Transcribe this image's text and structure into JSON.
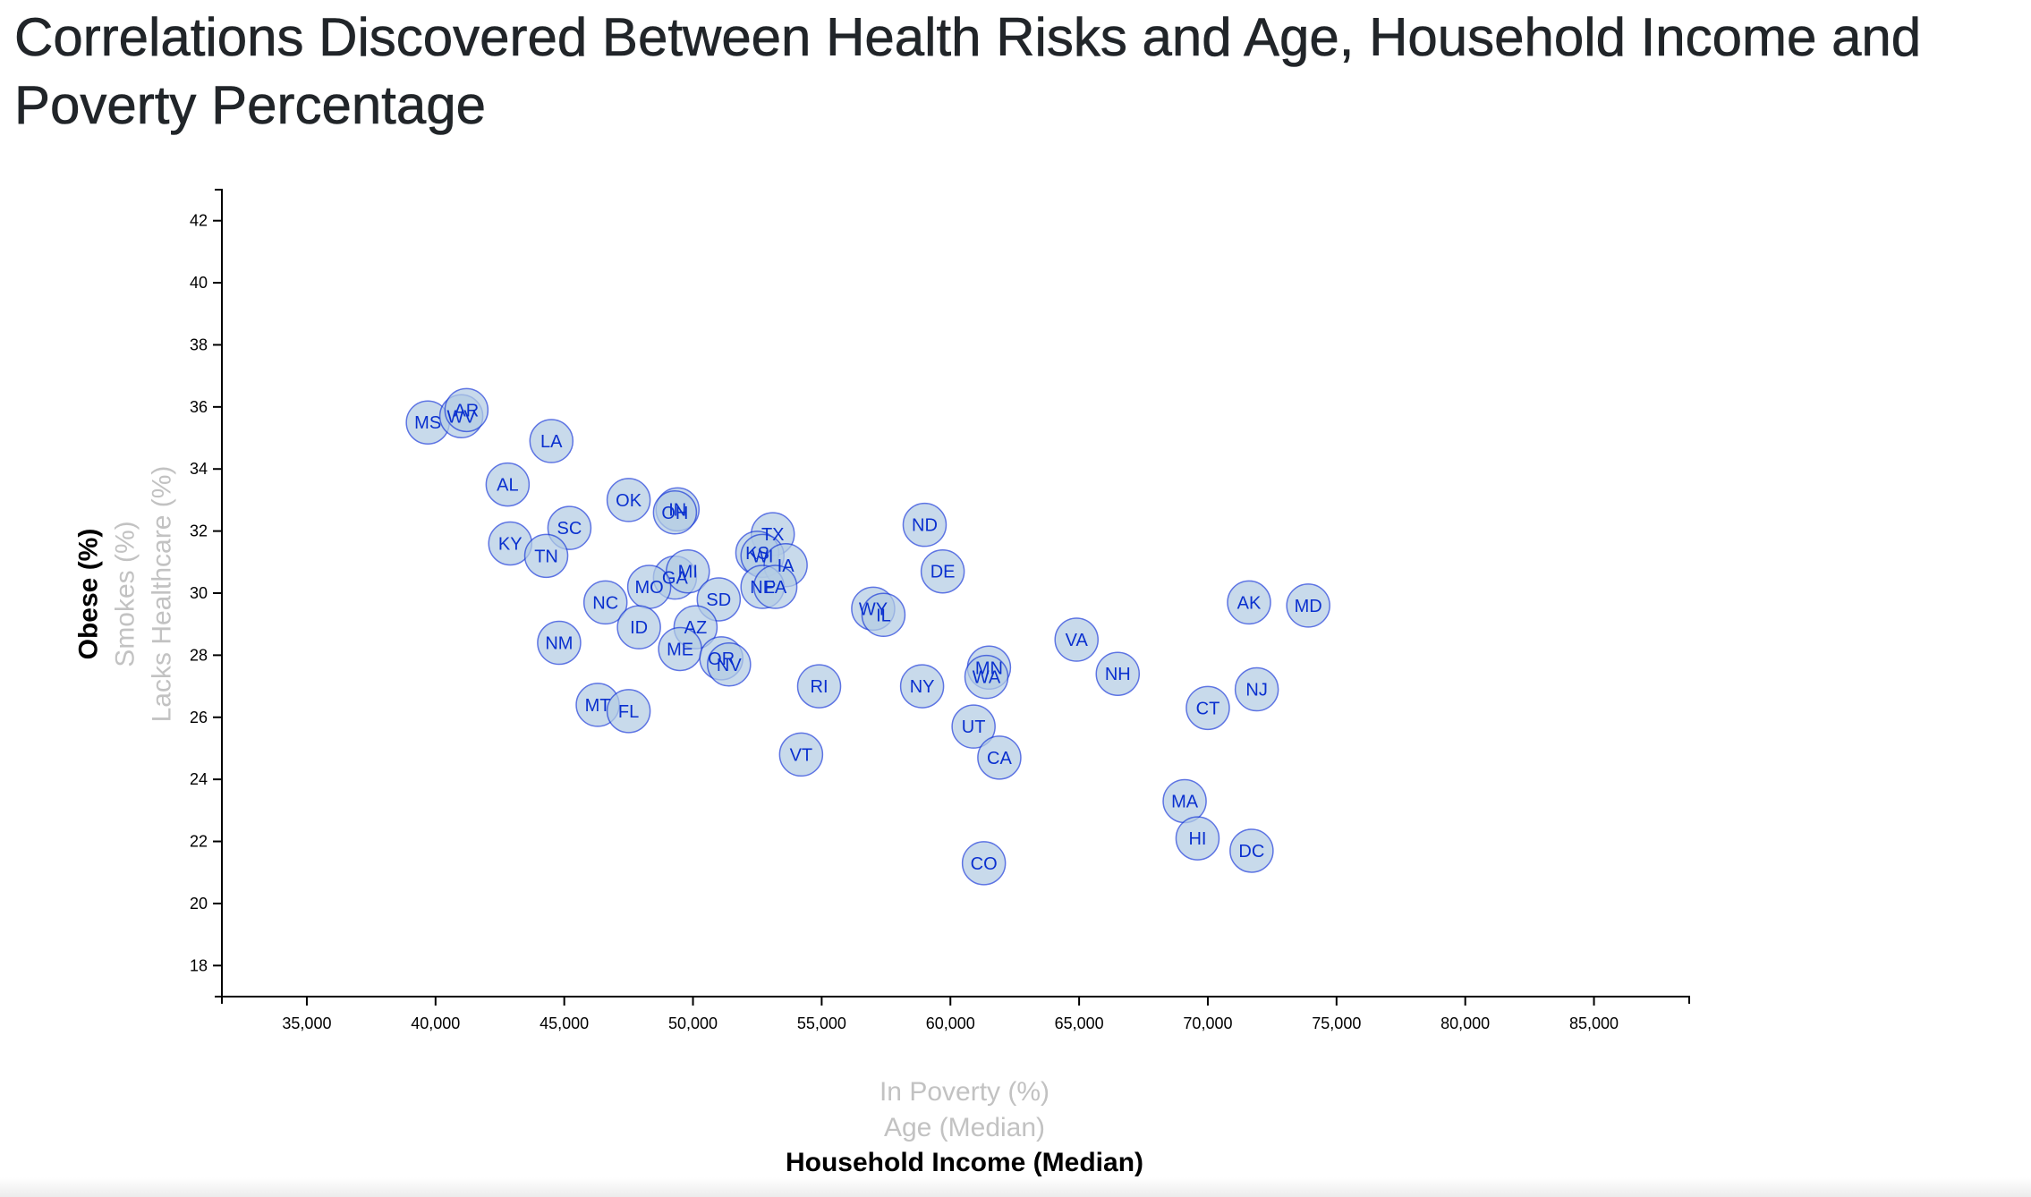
{
  "title": "Correlations Discovered Between Health Risks and Age, Household Income and Poverty Percentage",
  "chart_data": {
    "type": "scatter",
    "x_label_options": [
      "In Poverty (%)",
      "Age (Median)",
      "Household Income (Median)"
    ],
    "y_label_options": [
      "Obese (%)",
      "Smokes (%)",
      "Lacks Healthcare (%)"
    ],
    "active_x": "Household Income (Median)",
    "active_y": "Obese (%)",
    "xlim": [
      31700,
      88700
    ],
    "ylim": [
      17,
      43
    ],
    "x_ticks": [
      35000,
      40000,
      45000,
      50000,
      55000,
      60000,
      65000,
      70000,
      75000,
      80000,
      85000
    ],
    "x_tick_labels": [
      "35,000",
      "40,000",
      "45,000",
      "50,000",
      "55,000",
      "60,000",
      "65,000",
      "70,000",
      "75,000",
      "80,000",
      "85,000"
    ],
    "y_ticks": [
      18,
      20,
      22,
      24,
      26,
      28,
      30,
      32,
      34,
      36,
      38,
      40,
      42
    ],
    "y_tick_labels": [
      "18",
      "20",
      "22",
      "24",
      "26",
      "28",
      "30",
      "32",
      "34",
      "36",
      "38",
      "40",
      "42"
    ],
    "points": [
      {
        "label": "MS",
        "x": 39700,
        "y": 35.5
      },
      {
        "label": "WV",
        "x": 41000,
        "y": 35.7
      },
      {
        "label": "AR",
        "x": 41200,
        "y": 35.9
      },
      {
        "label": "LA",
        "x": 44500,
        "y": 34.9
      },
      {
        "label": "AL",
        "x": 42800,
        "y": 33.5
      },
      {
        "label": "OK",
        "x": 47500,
        "y": 33.0
      },
      {
        "label": "IN",
        "x": 49400,
        "y": 32.7
      },
      {
        "label": "OH",
        "x": 49300,
        "y": 32.6
      },
      {
        "label": "SC",
        "x": 45200,
        "y": 32.1
      },
      {
        "label": "KY",
        "x": 42900,
        "y": 31.6
      },
      {
        "label": "TN",
        "x": 44300,
        "y": 31.2
      },
      {
        "label": "TX",
        "x": 53100,
        "y": 31.9
      },
      {
        "label": "KS",
        "x": 52500,
        "y": 31.3
      },
      {
        "label": "WI",
        "x": 52700,
        "y": 31.2
      },
      {
        "label": "IA",
        "x": 53600,
        "y": 30.9
      },
      {
        "label": "ND",
        "x": 59000,
        "y": 32.2
      },
      {
        "label": "DE",
        "x": 59700,
        "y": 30.7
      },
      {
        "label": "GA",
        "x": 49300,
        "y": 30.5
      },
      {
        "label": "MI",
        "x": 49800,
        "y": 30.7
      },
      {
        "label": "MO",
        "x": 48300,
        "y": 30.2
      },
      {
        "label": "NE",
        "x": 52700,
        "y": 30.2
      },
      {
        "label": "PA",
        "x": 53200,
        "y": 30.2
      },
      {
        "label": "SD",
        "x": 51000,
        "y": 29.8
      },
      {
        "label": "NC",
        "x": 46600,
        "y": 29.7
      },
      {
        "label": "WY",
        "x": 57000,
        "y": 29.5
      },
      {
        "label": "IL",
        "x": 57400,
        "y": 29.3
      },
      {
        "label": "ID",
        "x": 47900,
        "y": 28.9
      },
      {
        "label": "AZ",
        "x": 50100,
        "y": 28.9
      },
      {
        "label": "NM",
        "x": 44800,
        "y": 28.4
      },
      {
        "label": "ME",
        "x": 49500,
        "y": 28.2
      },
      {
        "label": "OR",
        "x": 51100,
        "y": 27.9
      },
      {
        "label": "NV",
        "x": 51400,
        "y": 27.7
      },
      {
        "label": "RI",
        "x": 54900,
        "y": 27.0
      },
      {
        "label": "NY",
        "x": 58900,
        "y": 27.0
      },
      {
        "label": "MN",
        "x": 61500,
        "y": 27.6
      },
      {
        "label": "WA",
        "x": 61400,
        "y": 27.3
      },
      {
        "label": "VA",
        "x": 64900,
        "y": 28.5
      },
      {
        "label": "NH",
        "x": 66500,
        "y": 27.4
      },
      {
        "label": "AK",
        "x": 71600,
        "y": 29.7
      },
      {
        "label": "MD",
        "x": 73900,
        "y": 29.6
      },
      {
        "label": "NJ",
        "x": 71900,
        "y": 26.9
      },
      {
        "label": "CT",
        "x": 70000,
        "y": 26.3
      },
      {
        "label": "MT",
        "x": 46300,
        "y": 26.4
      },
      {
        "label": "FL",
        "x": 47500,
        "y": 26.2
      },
      {
        "label": "UT",
        "x": 60900,
        "y": 25.7
      },
      {
        "label": "VT",
        "x": 54200,
        "y": 24.8
      },
      {
        "label": "CA",
        "x": 61900,
        "y": 24.7
      },
      {
        "label": "MA",
        "x": 69100,
        "y": 23.3
      },
      {
        "label": "HI",
        "x": 69600,
        "y": 22.1
      },
      {
        "label": "DC",
        "x": 71700,
        "y": 21.7
      },
      {
        "label": "CO",
        "x": 61300,
        "y": 21.3
      }
    ]
  }
}
